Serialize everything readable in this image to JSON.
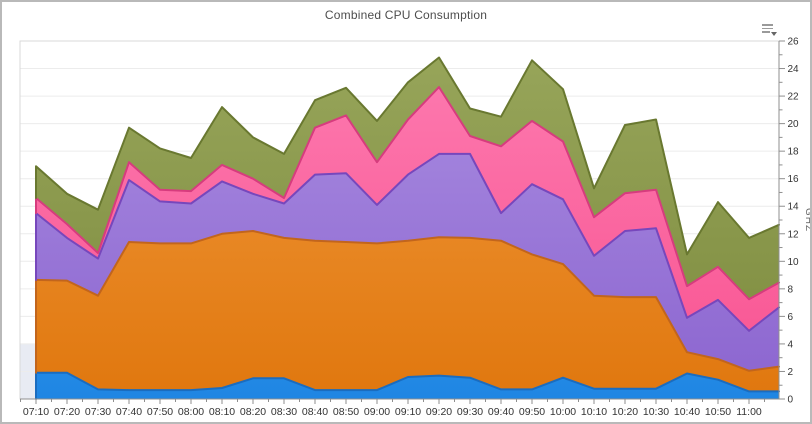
{
  "header": {
    "title": "Combined CPU Consumption"
  },
  "icons": {
    "chart_menu": "menu-caret-icon"
  },
  "palette": {
    "outer_border": "#b9b9b9",
    "plot_border": "#d9d9d9",
    "gridline": "#ececec",
    "axis_line": "#8f8f8f",
    "tick_label": "#333333",
    "axis_title": "#6a6a6a",
    "strip_fill": "#e8ebf3"
  },
  "chart_data": {
    "type": "area",
    "stacked": true,
    "title": "Combined CPU Consumption",
    "xlabel": "",
    "ylabel": "GHZ",
    "ylim": [
      0,
      26
    ],
    "y_major_step": 2,
    "y_minor_step": 1,
    "y_tick_labels": [
      "0",
      "2",
      "4",
      "6",
      "8",
      "10",
      "12",
      "14",
      "16",
      "18",
      "20",
      "22",
      "24",
      "26"
    ],
    "grid": "horizontal-only",
    "legend_position": "none",
    "strip": {
      "from": 0,
      "to": 4,
      "color": "#e8ebf3"
    },
    "categories": [
      "07:10",
      "07:20",
      "07:30",
      "07:40",
      "07:50",
      "08:00",
      "08:10",
      "08:20",
      "08:30",
      "08:40",
      "08:50",
      "09:00",
      "09:10",
      "09:20",
      "09:30",
      "09:40",
      "09:50",
      "10:00",
      "10:10",
      "10:20",
      "10:30",
      "10:40",
      "10:50",
      "11:00"
    ],
    "right_edge_extra_point": true,
    "series": [
      {
        "name": "blue",
        "fill_top": "#4da7f1",
        "fill_bottom": "#1f86e3",
        "border": "#1a6cbf",
        "values": [
          1.9,
          1.9,
          0.7,
          0.65,
          0.65,
          0.65,
          0.8,
          1.5,
          1.5,
          0.65,
          0.65,
          0.65,
          1.6,
          1.7,
          1.55,
          0.7,
          0.7,
          1.55,
          0.75,
          0.75,
          0.75,
          1.85,
          1.4,
          0.55,
          0.55
        ]
      },
      {
        "name": "orange",
        "fill_top": "#f19a3d",
        "fill_bottom": "#e0770e",
        "border": "#c2651c",
        "values": [
          6.75,
          6.7,
          6.8,
          10.75,
          10.65,
          10.65,
          11.2,
          10.7,
          10.2,
          10.85,
          10.75,
          10.65,
          9.9,
          10.05,
          10.15,
          10.8,
          9.8,
          8.25,
          6.75,
          6.65,
          6.65,
          1.55,
          1.5,
          1.5,
          1.8
        ]
      },
      {
        "name": "purple",
        "fill_top": "#ab8fe2",
        "fill_bottom": "#8b64cf",
        "border": "#7747bc",
        "values": [
          4.85,
          3.1,
          2.7,
          4.5,
          3.05,
          2.9,
          3.8,
          2.7,
          2.5,
          4.8,
          5.0,
          2.8,
          4.8,
          6.05,
          6.1,
          2.0,
          5.1,
          4.7,
          2.9,
          4.8,
          5.0,
          2.5,
          4.3,
          2.9,
          4.3
        ]
      },
      {
        "name": "pink",
        "fill_top": "#fd7cb1",
        "fill_bottom": "#f85290",
        "border": "#d63c7e",
        "values": [
          1.1,
          1.0,
          0.4,
          1.3,
          0.85,
          0.9,
          1.2,
          1.1,
          0.4,
          3.4,
          4.2,
          3.1,
          4.0,
          4.85,
          1.3,
          4.85,
          4.6,
          4.2,
          2.8,
          2.75,
          2.8,
          2.3,
          2.4,
          2.3,
          1.8
        ]
      },
      {
        "name": "olive",
        "fill_top": "#98a65b",
        "fill_bottom": "#7c8a3d",
        "border": "#697830",
        "values": [
          2.3,
          2.2,
          3.15,
          2.5,
          3.0,
          2.4,
          4.2,
          3.0,
          3.2,
          2.0,
          2.0,
          3.0,
          2.7,
          2.15,
          2.0,
          2.15,
          4.4,
          3.8,
          2.1,
          4.95,
          5.1,
          2.3,
          4.7,
          4.45,
          4.2
        ]
      }
    ]
  }
}
